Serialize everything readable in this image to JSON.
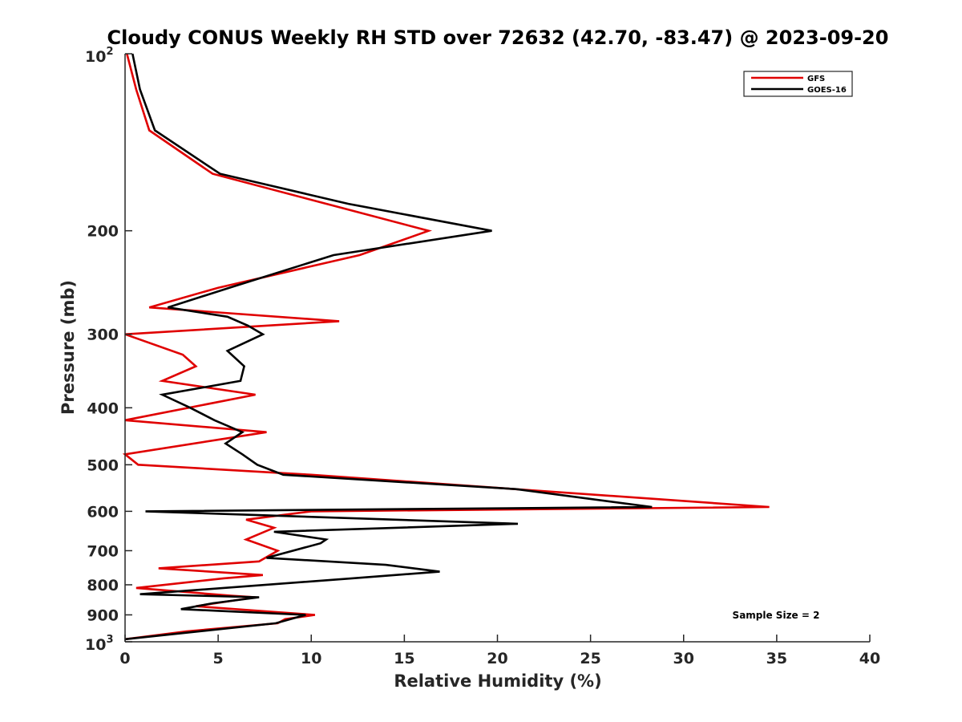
{
  "chart_data": {
    "type": "line",
    "title": "Cloudy CONUS Weekly RH STD over 72632 (42.70, -83.47) @ 2023-09-20",
    "xlabel": "Relative Humidity (%)",
    "ylabel": "Pressure (mb)",
    "xlim": [
      0,
      40
    ],
    "ylim": [
      100,
      1000
    ],
    "y_scale": "log",
    "y_reversed": true,
    "grid": false,
    "legend_position": "top-right",
    "x_ticks": [
      "0",
      "5",
      "10",
      "15",
      "20",
      "25",
      "30",
      "35",
      "40"
    ],
    "y_ticks": [
      {
        "value": 100,
        "base": "10",
        "exp": "2"
      },
      {
        "value": 200,
        "label": "200"
      },
      {
        "value": 300,
        "label": "300"
      },
      {
        "value": 400,
        "label": "400"
      },
      {
        "value": 500,
        "label": "500"
      },
      {
        "value": 600,
        "label": "600"
      },
      {
        "value": 700,
        "label": "700"
      },
      {
        "value": 800,
        "label": "800"
      },
      {
        "value": 900,
        "label": "900"
      },
      {
        "value": 1000,
        "base": "10",
        "exp": "3"
      }
    ],
    "annotation": "Sample Size = 2",
    "series": [
      {
        "name": "GFS",
        "color": "#e00000",
        "points": [
          [
            0.1,
            100
          ],
          [
            0.6,
            115
          ],
          [
            1.3,
            135
          ],
          [
            4.7,
            160
          ],
          [
            16.3,
            200
          ],
          [
            12.6,
            220
          ],
          [
            5.0,
            250
          ],
          [
            1.3,
            270
          ],
          [
            11.5,
            285
          ],
          [
            0.0,
            300
          ],
          [
            3.1,
            325
          ],
          [
            3.8,
            340
          ],
          [
            2.0,
            360
          ],
          [
            7.0,
            380
          ],
          [
            0.0,
            420
          ],
          [
            7.6,
            440
          ],
          [
            0.0,
            480
          ],
          [
            0.7,
            500
          ],
          [
            10.0,
            520
          ],
          [
            34.6,
            590
          ],
          [
            10.0,
            600
          ],
          [
            6.5,
            620
          ],
          [
            8.0,
            640
          ],
          [
            6.5,
            670
          ],
          [
            8.2,
            700
          ],
          [
            7.2,
            730
          ],
          [
            1.8,
            750
          ],
          [
            7.4,
            770
          ],
          [
            5.3,
            780
          ],
          [
            0.6,
            810
          ],
          [
            5.7,
            835
          ],
          [
            7.0,
            840
          ],
          [
            3.8,
            870
          ],
          [
            10.2,
            900
          ],
          [
            8.6,
            915
          ],
          [
            8.2,
            930
          ],
          [
            3.3,
            960
          ],
          [
            0.0,
            990
          ]
        ]
      },
      {
        "name": "GOES-16",
        "color": "#000000",
        "points": [
          [
            0.4,
            100
          ],
          [
            0.8,
            115
          ],
          [
            1.6,
            135
          ],
          [
            5.1,
            160
          ],
          [
            12.0,
            180
          ],
          [
            19.7,
            200
          ],
          [
            11.2,
            220
          ],
          [
            5.6,
            250
          ],
          [
            2.3,
            270
          ],
          [
            5.5,
            280
          ],
          [
            6.6,
            290
          ],
          [
            7.4,
            300
          ],
          [
            5.5,
            320
          ],
          [
            6.4,
            340
          ],
          [
            6.2,
            360
          ],
          [
            2.0,
            380
          ],
          [
            3.5,
            400
          ],
          [
            4.8,
            420
          ],
          [
            6.3,
            440
          ],
          [
            5.4,
            460
          ],
          [
            6.3,
            480
          ],
          [
            7.1,
            500
          ],
          [
            8.5,
            520
          ],
          [
            21.0,
            550
          ],
          [
            28.3,
            590
          ],
          [
            1.1,
            600
          ],
          [
            21.1,
            630
          ],
          [
            8.0,
            650
          ],
          [
            10.8,
            670
          ],
          [
            10.5,
            680
          ],
          [
            7.6,
            720
          ],
          [
            14.0,
            740
          ],
          [
            16.9,
            760
          ],
          [
            12.2,
            780
          ],
          [
            0.8,
            830
          ],
          [
            7.2,
            840
          ],
          [
            4.7,
            860
          ],
          [
            3.0,
            880
          ],
          [
            9.7,
            900
          ],
          [
            8.1,
            930
          ],
          [
            0.0,
            990
          ]
        ]
      }
    ]
  }
}
